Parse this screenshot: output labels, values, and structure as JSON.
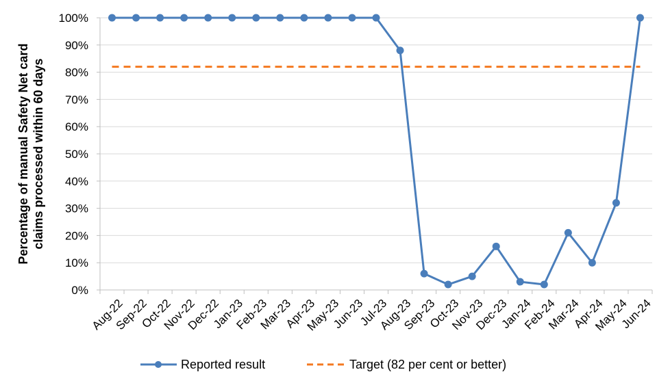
{
  "chart_data": {
    "type": "line",
    "categories": [
      "Aug-22",
      "Sep-22",
      "Oct-22",
      "Nov-22",
      "Dec-22",
      "Jan-23",
      "Feb-23",
      "Mar-23",
      "Apr-23",
      "May-23",
      "Jun-23",
      "Jul-23",
      "Aug-23",
      "Sep-23",
      "Oct-23",
      "Nov-23",
      "Dec-23",
      "Jan-24",
      "Feb-24",
      "Mar-24",
      "Apr-24",
      "May-24",
      "Jun-24"
    ],
    "series": [
      {
        "name": "Reported result",
        "values": [
          100,
          100,
          100,
          100,
          100,
          100,
          100,
          100,
          100,
          100,
          100,
          100,
          88,
          6,
          2,
          5,
          16,
          3,
          2,
          21,
          10,
          32,
          100
        ],
        "color": "#4a7ebb",
        "style": "solid-with-markers"
      },
      {
        "name": "Target (82 per cent or better)",
        "values": [
          82,
          82,
          82,
          82,
          82,
          82,
          82,
          82,
          82,
          82,
          82,
          82,
          82,
          82,
          82,
          82,
          82,
          82,
          82,
          82,
          82,
          82,
          82
        ],
        "color": "#f47920",
        "style": "dashed"
      }
    ],
    "ylabel_lines": [
      "Percentage of manual Safety Net card",
      "claims processed within 60 days"
    ],
    "ylim": [
      0,
      100
    ],
    "yticks": [
      0,
      10,
      20,
      30,
      40,
      50,
      60,
      70,
      80,
      90,
      100
    ],
    "ytick_labels": [
      "0%",
      "10%",
      "20%",
      "30%",
      "40%",
      "50%",
      "60%",
      "70%",
      "80%",
      "90%",
      "100%"
    ],
    "grid": "horizontal",
    "legend_position": "bottom"
  }
}
